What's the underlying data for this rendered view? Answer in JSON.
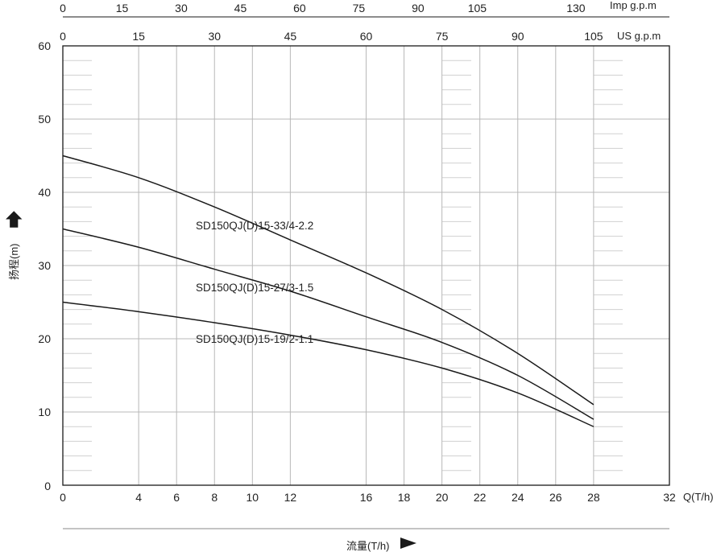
{
  "colors": {
    "line": "#1a1a1a",
    "grid": "#b8b8b8",
    "minor": "#d0d0d0",
    "background": "#ffffff"
  },
  "chart_data": {
    "type": "line",
    "xlabel": "流量(T/h)",
    "ylabel": "扬程(m)",
    "x_unit_label": "Q(T/h)",
    "xlim": [
      0,
      32
    ],
    "ylim": [
      0,
      60
    ],
    "x_ticks": [
      0,
      4,
      6,
      8,
      10,
      12,
      16,
      18,
      20,
      22,
      24,
      26,
      28,
      32
    ],
    "y_ticks": [
      0,
      10,
      20,
      30,
      40,
      50,
      60
    ],
    "grid": true,
    "secondary_axes": [
      {
        "label": "US g.p.m",
        "ticks": [
          0,
          15,
          30,
          45,
          60,
          75,
          90,
          105
        ]
      },
      {
        "label": "Imp g.p.m",
        "ticks": [
          0,
          15,
          30,
          45,
          60,
          75,
          90,
          105,
          130
        ]
      }
    ],
    "series": [
      {
        "name": "SD150QJ(D)15-33/4-2.2",
        "x": [
          0,
          4,
          8,
          12,
          16,
          20,
          24,
          28
        ],
        "y": [
          45,
          42,
          38,
          33.5,
          29,
          24,
          18,
          11
        ]
      },
      {
        "name": "SD150QJ(D)15-27/3-1.5",
        "x": [
          0,
          4,
          8,
          12,
          16,
          20,
          24,
          28
        ],
        "y": [
          35,
          32.5,
          29.5,
          26.5,
          23,
          19.5,
          15,
          9
        ]
      },
      {
        "name": "SD150QJ(D)15-19/2-1.1",
        "x": [
          0,
          4,
          8,
          12,
          16,
          20,
          24,
          28
        ],
        "y": [
          25,
          23.7,
          22.2,
          20.5,
          18.5,
          16,
          12.6,
          8
        ]
      }
    ]
  }
}
